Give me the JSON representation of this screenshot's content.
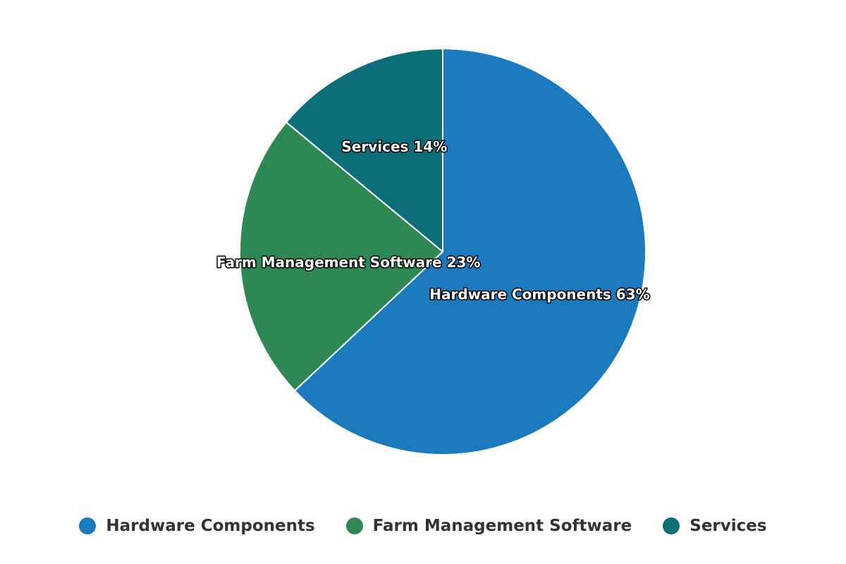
{
  "chart_data": {
    "type": "pie",
    "categories": [
      "Hardware Components",
      "Farm Management Software",
      "Services"
    ],
    "values": [
      63,
      23,
      14
    ],
    "unit": "%",
    "colors": [
      "#1a7abd",
      "#2e8853",
      "#0b6e79"
    ],
    "data_labels": [
      "Hardware Components 63%",
      "Farm Management Software 23%",
      "Services 14%"
    ],
    "start_angle": "12 o'clock",
    "direction": "clockwise",
    "legend": {
      "position": "bottom",
      "items": [
        "Hardware Components",
        "Farm Management Software",
        "Services"
      ]
    }
  }
}
